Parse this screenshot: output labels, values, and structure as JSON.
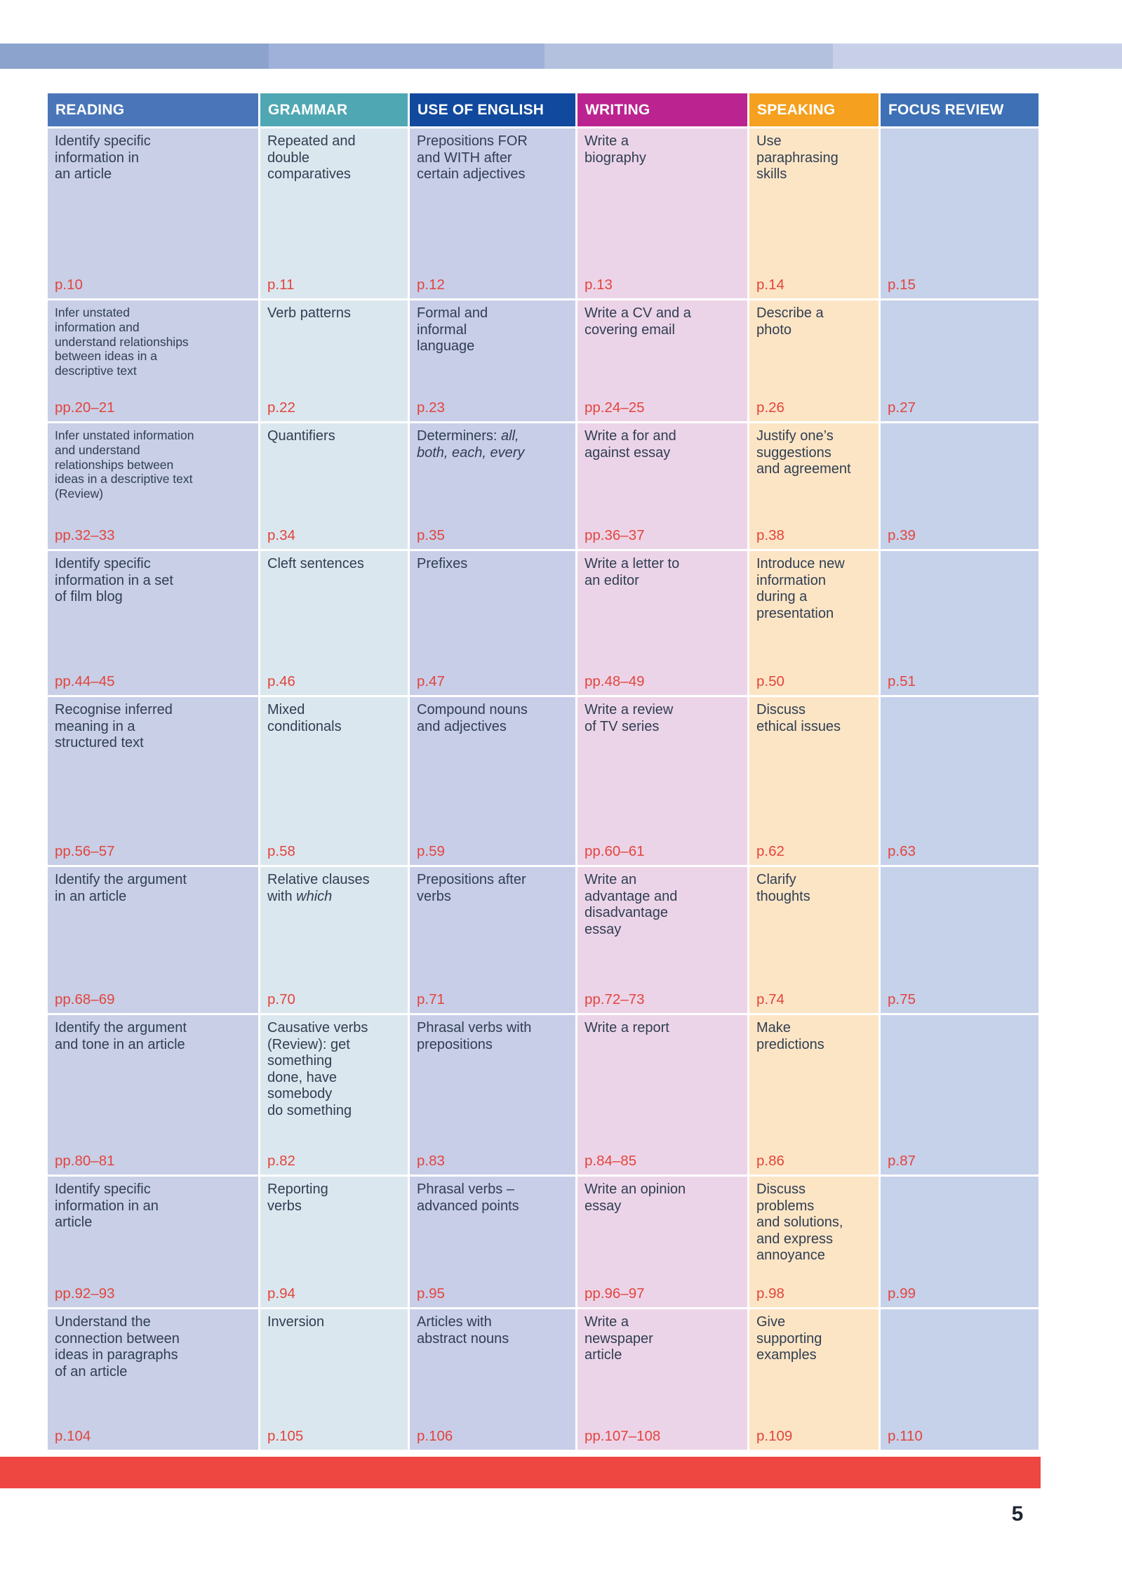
{
  "page": {
    "number": "5"
  },
  "colors": {
    "header": {
      "reading": "#4a76b9",
      "grammar": "#4fa7b3",
      "use_of_english": "#10499e",
      "writing": "#bb2390",
      "speaking": "#f5a01e",
      "focus_review": "#3d70b4"
    },
    "cell": {
      "reading": "#c8cfe7",
      "grammar": "#dbe7ee",
      "use_of_english": "#c8cee8",
      "writing": "#ecd4e8",
      "speaking": "#fce5c5",
      "focus_review": "#c6d1ea"
    },
    "text": "#303e52",
    "page_number": "#e2453d",
    "top_bar": [
      "#8ca3ce",
      "#9fb1d8",
      "#b3c1df",
      "#c8d0e9"
    ],
    "bottom_bar": "#ee4741",
    "folio": "#1d2530"
  },
  "table": {
    "headers": [
      {
        "label": "READING",
        "key": "reading"
      },
      {
        "label": "GRAMMAR",
        "key": "grammar"
      },
      {
        "label": "USE OF ENGLISH",
        "key": "use_of_english"
      },
      {
        "label": "WRITING",
        "key": "writing"
      },
      {
        "label": "SPEAKING",
        "key": "speaking"
      },
      {
        "label": "FOCUS REVIEW",
        "key": "focus_review"
      }
    ],
    "rows": [
      {
        "cells": [
          {
            "parts": [
              {
                "text": "Identify specific\ninformation in\nan article"
              }
            ],
            "page": "p.10"
          },
          {
            "parts": [
              {
                "text": "Repeated and\ndouble\ncomparatives"
              }
            ],
            "page": "p.11"
          },
          {
            "parts": [
              {
                "text": "Prepositions FOR\nand WITH after\ncertain adjectives"
              }
            ],
            "page": "p.12"
          },
          {
            "parts": [
              {
                "text": "Write a\nbiography"
              }
            ],
            "page": "p.13"
          },
          {
            "parts": [
              {
                "text": "Use\nparaphrasing\nskills"
              }
            ],
            "page": "p.14"
          },
          {
            "parts": [],
            "page": "p.15"
          }
        ]
      },
      {
        "cells": [
          {
            "small": true,
            "parts": [
              {
                "text": "Infer unstated\ninformation and\nunderstand relationships\nbetween ideas in a\ndescriptive text"
              }
            ],
            "page": "pp.20–21"
          },
          {
            "parts": [
              {
                "text": "Verb patterns"
              }
            ],
            "page": "p.22"
          },
          {
            "parts": [
              {
                "text": "Formal and\ninformal\nlanguage"
              }
            ],
            "page": "p.23"
          },
          {
            "parts": [
              {
                "text": "Write a CV and a\ncovering email"
              }
            ],
            "page": "pp.24–25"
          },
          {
            "parts": [
              {
                "text": "Describe a\nphoto"
              }
            ],
            "page": "p.26"
          },
          {
            "parts": [],
            "page": "p.27"
          }
        ]
      },
      {
        "cells": [
          {
            "small": true,
            "parts": [
              {
                "text": "Infer unstated information\nand understand\nrelationships between\nideas in a descriptive text\n(Review)"
              }
            ],
            "page": "pp.32–33"
          },
          {
            "parts": [
              {
                "text": "Quantifiers"
              }
            ],
            "page": "p.34"
          },
          {
            "parts": [
              {
                "text": "Determiners: "
              },
              {
                "text": "all,\nboth, each, every",
                "italic": true
              }
            ],
            "page": "p.35"
          },
          {
            "parts": [
              {
                "text": "Write a for and\nagainst essay"
              }
            ],
            "page": "pp.36–37"
          },
          {
            "parts": [
              {
                "text": "Justify one’s\nsuggestions\nand agreement"
              }
            ],
            "page": "p.38"
          },
          {
            "parts": [],
            "page": "p.39"
          }
        ]
      },
      {
        "cells": [
          {
            "parts": [
              {
                "text": "Identify specific\ninformation in a set\nof film blog"
              }
            ],
            "page": "pp.44–45"
          },
          {
            "parts": [
              {
                "text": "Cleft sentences"
              }
            ],
            "page": "p.46"
          },
          {
            "parts": [
              {
                "text": "Prefixes"
              }
            ],
            "page": "p.47"
          },
          {
            "parts": [
              {
                "text": "Write a letter to\nan editor"
              }
            ],
            "page": "pp.48–49"
          },
          {
            "parts": [
              {
                "text": "Introduce new\ninformation\nduring a\npresentation"
              }
            ],
            "page": "p.50"
          },
          {
            "parts": [],
            "page": "p.51"
          }
        ]
      },
      {
        "cells": [
          {
            "parts": [
              {
                "text": "Recognise inferred\nmeaning in a\nstructured text"
              }
            ],
            "page": "pp.56–57"
          },
          {
            "parts": [
              {
                "text": "Mixed\nconditionals"
              }
            ],
            "page": "p.58"
          },
          {
            "parts": [
              {
                "text": "Compound nouns\nand adjectives"
              }
            ],
            "page": "p.59"
          },
          {
            "parts": [
              {
                "text": "Write a review\nof TV series"
              }
            ],
            "page": "pp.60–61"
          },
          {
            "parts": [
              {
                "text": "Discuss\nethical issues"
              }
            ],
            "page": "p.62"
          },
          {
            "parts": [],
            "page": "p.63"
          }
        ]
      },
      {
        "cells": [
          {
            "parts": [
              {
                "text": "Identify the argument\nin an article"
              }
            ],
            "page": "pp.68–69"
          },
          {
            "parts": [
              {
                "text": "Relative clauses\nwith "
              },
              {
                "text": "which",
                "italic": true
              }
            ],
            "page": "p.70"
          },
          {
            "parts": [
              {
                "text": "Prepositions after\nverbs"
              }
            ],
            "page": "p.71"
          },
          {
            "parts": [
              {
                "text": "Write an\nadvantage and\ndisadvantage\nessay"
              }
            ],
            "page": "pp.72–73"
          },
          {
            "parts": [
              {
                "text": "Clarify\nthoughts"
              }
            ],
            "page": "p.74"
          },
          {
            "parts": [],
            "page": "p.75"
          }
        ]
      },
      {
        "cells": [
          {
            "parts": [
              {
                "text": "Identify the argument\nand tone in an article"
              }
            ],
            "page": "pp.80–81"
          },
          {
            "parts": [
              {
                "text": "Causative verbs\n(Review): get\nsomething\ndone, have\nsomebody\ndo something"
              }
            ],
            "page": "p.82"
          },
          {
            "parts": [
              {
                "text": "Phrasal verbs with\nprepositions"
              }
            ],
            "page": "p.83"
          },
          {
            "parts": [
              {
                "text": "Write a report"
              }
            ],
            "page": "p.84–85"
          },
          {
            "parts": [
              {
                "text": "Make\npredictions"
              }
            ],
            "page": "p.86"
          },
          {
            "parts": [],
            "page": "p.87"
          }
        ]
      },
      {
        "cells": [
          {
            "parts": [
              {
                "text": "Identify specific\ninformation in an\narticle"
              }
            ],
            "page": "pp.92–93"
          },
          {
            "parts": [
              {
                "text": "Reporting\nverbs"
              }
            ],
            "page": "p.94"
          },
          {
            "parts": [
              {
                "text": "Phrasal verbs –\nadvanced points"
              }
            ],
            "page": "p.95"
          },
          {
            "parts": [
              {
                "text": "Write an opinion\nessay"
              }
            ],
            "page": "pp.96–97"
          },
          {
            "parts": [
              {
                "text": "Discuss\nproblems\nand solutions,\nand express\nannoyance"
              }
            ],
            "page": "p.98"
          },
          {
            "parts": [],
            "page": "p.99"
          }
        ]
      },
      {
        "cells": [
          {
            "parts": [
              {
                "text": "Understand the\nconnection between\nideas in paragraphs\nof an article"
              }
            ],
            "page": "p.104"
          },
          {
            "parts": [
              {
                "text": "Inversion"
              }
            ],
            "page": "p.105"
          },
          {
            "parts": [
              {
                "text": "Articles with\nabstract nouns"
              }
            ],
            "page": "p.106"
          },
          {
            "parts": [
              {
                "text": "Write a\nnewspaper\narticle"
              }
            ],
            "page": "pp.107–108"
          },
          {
            "parts": [
              {
                "text": "Give\nsupporting\nexamples"
              }
            ],
            "page": "p.109"
          },
          {
            "parts": [],
            "page": "p.110"
          }
        ]
      }
    ]
  }
}
